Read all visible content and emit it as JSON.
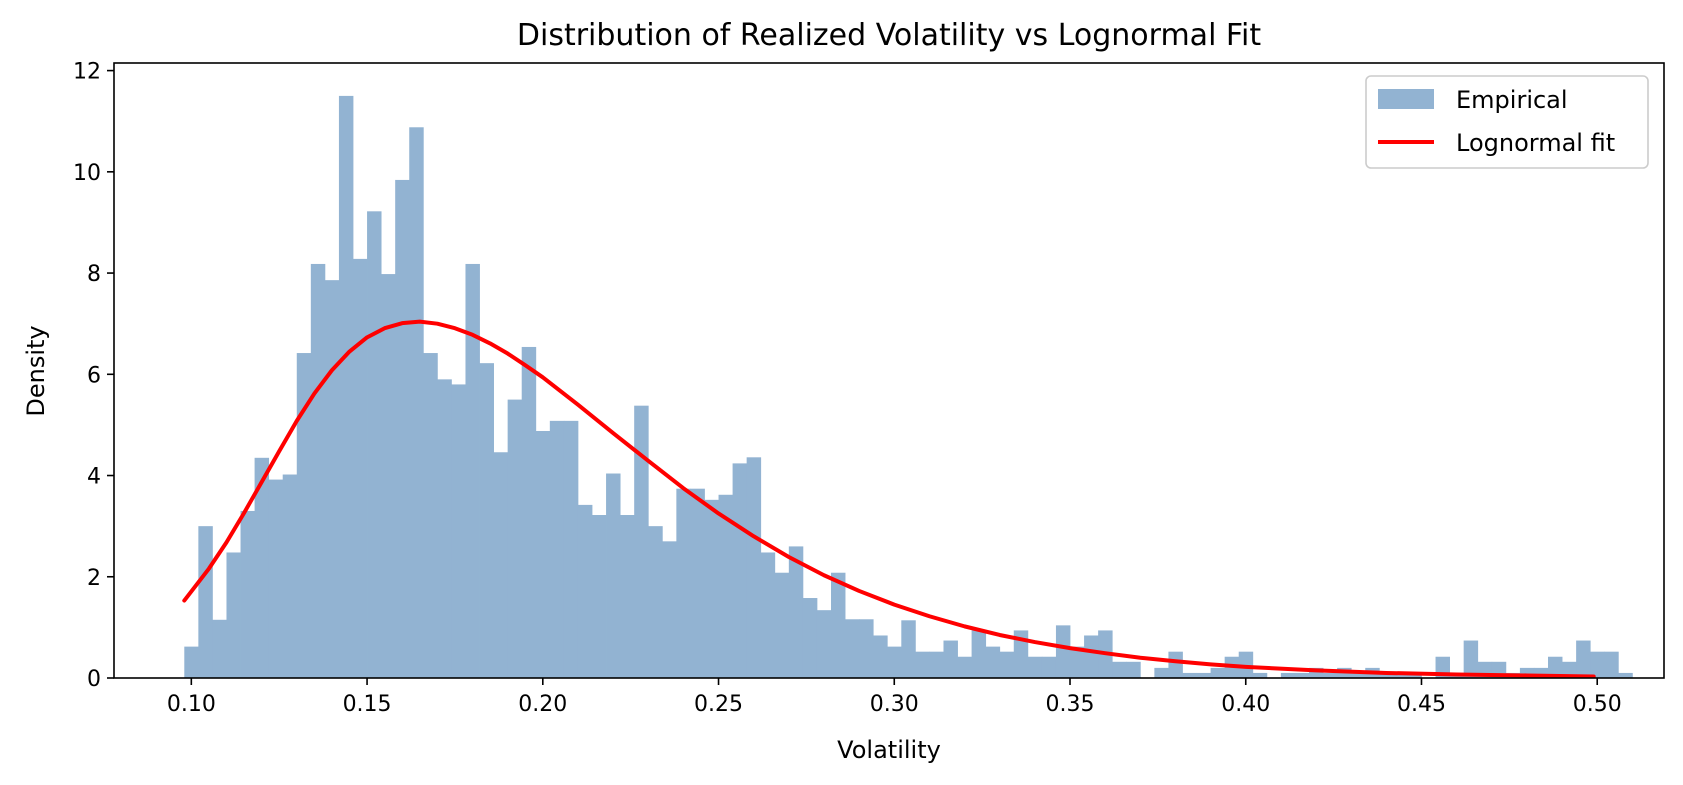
{
  "chart_data": {
    "type": "bar",
    "title": "Distribution of Realized Volatility vs Lognormal Fit",
    "xlabel": "Volatility",
    "ylabel": "Density",
    "xlim": [
      0.078,
      0.519
    ],
    "ylim": [
      0,
      12.15
    ],
    "xticks": [
      0.1,
      0.15,
      0.2,
      0.25,
      0.3,
      0.35,
      0.4,
      0.45,
      0.5
    ],
    "xtick_labels": [
      "0.10",
      "0.15",
      "0.20",
      "0.25",
      "0.30",
      "0.35",
      "0.40",
      "0.45",
      "0.50"
    ],
    "yticks": [
      0,
      2,
      4,
      6,
      8,
      10,
      12
    ],
    "ytick_labels": [
      "0",
      "2",
      "4",
      "6",
      "8",
      "10",
      "12"
    ],
    "grid": false,
    "legend_position": "upper right",
    "series": [
      {
        "name": "Empirical",
        "kind": "histogram",
        "color": "#92b3d2",
        "bin_start": 0.098,
        "bin_width": 0.004,
        "values": [
          0.62,
          3.0,
          1.15,
          2.48,
          3.3,
          4.35,
          3.92,
          4.02,
          6.42,
          8.18,
          7.86,
          11.5,
          8.28,
          9.22,
          7.98,
          9.84,
          10.88,
          6.42,
          5.9,
          5.8,
          8.18,
          6.22,
          4.46,
          5.5,
          6.54,
          4.88,
          5.08,
          5.08,
          3.42,
          3.22,
          4.04,
          3.22,
          5.38,
          3.0,
          2.7,
          3.74,
          3.74,
          3.52,
          3.62,
          4.24,
          4.36,
          2.48,
          2.08,
          2.6,
          1.58,
          1.34,
          2.08,
          1.16,
          1.16,
          0.84,
          0.62,
          1.14,
          0.52,
          0.52,
          0.74,
          0.42,
          0.94,
          0.62,
          0.52,
          0.94,
          0.42,
          0.42,
          1.04,
          0.62,
          0.84,
          0.94,
          0.32,
          0.32,
          0.0,
          0.2,
          0.52,
          0.1,
          0.1,
          0.2,
          0.42,
          0.52,
          0.1,
          0.0,
          0.1,
          0.1,
          0.2,
          0.1,
          0.2,
          0.1,
          0.2,
          0.1,
          0.1,
          0.1,
          0.0,
          0.42,
          0.1,
          0.74,
          0.32,
          0.32,
          0.1,
          0.2,
          0.2,
          0.42,
          0.32,
          0.74,
          0.52,
          0.52,
          0.1
        ]
      },
      {
        "name": "Lognormal fit",
        "kind": "line",
        "color": "#ff0000",
        "x": [
          0.098,
          0.105,
          0.11,
          0.115,
          0.12,
          0.125,
          0.13,
          0.135,
          0.14,
          0.145,
          0.15,
          0.155,
          0.16,
          0.165,
          0.17,
          0.175,
          0.18,
          0.185,
          0.19,
          0.195,
          0.2,
          0.21,
          0.22,
          0.23,
          0.24,
          0.25,
          0.26,
          0.27,
          0.28,
          0.29,
          0.3,
          0.31,
          0.32,
          0.33,
          0.34,
          0.35,
          0.36,
          0.37,
          0.38,
          0.39,
          0.4,
          0.42,
          0.44,
          0.46,
          0.48,
          0.499
        ],
        "y": [
          1.53,
          2.16,
          2.68,
          3.26,
          3.87,
          4.48,
          5.08,
          5.62,
          6.08,
          6.45,
          6.73,
          6.91,
          7.01,
          7.04,
          7.0,
          6.91,
          6.78,
          6.61,
          6.41,
          6.18,
          5.94,
          5.4,
          4.84,
          4.29,
          3.75,
          3.25,
          2.8,
          2.39,
          2.03,
          1.72,
          1.45,
          1.22,
          1.02,
          0.85,
          0.71,
          0.59,
          0.49,
          0.4,
          0.33,
          0.27,
          0.22,
          0.15,
          0.1,
          0.07,
          0.05,
          0.03
        ]
      }
    ]
  }
}
